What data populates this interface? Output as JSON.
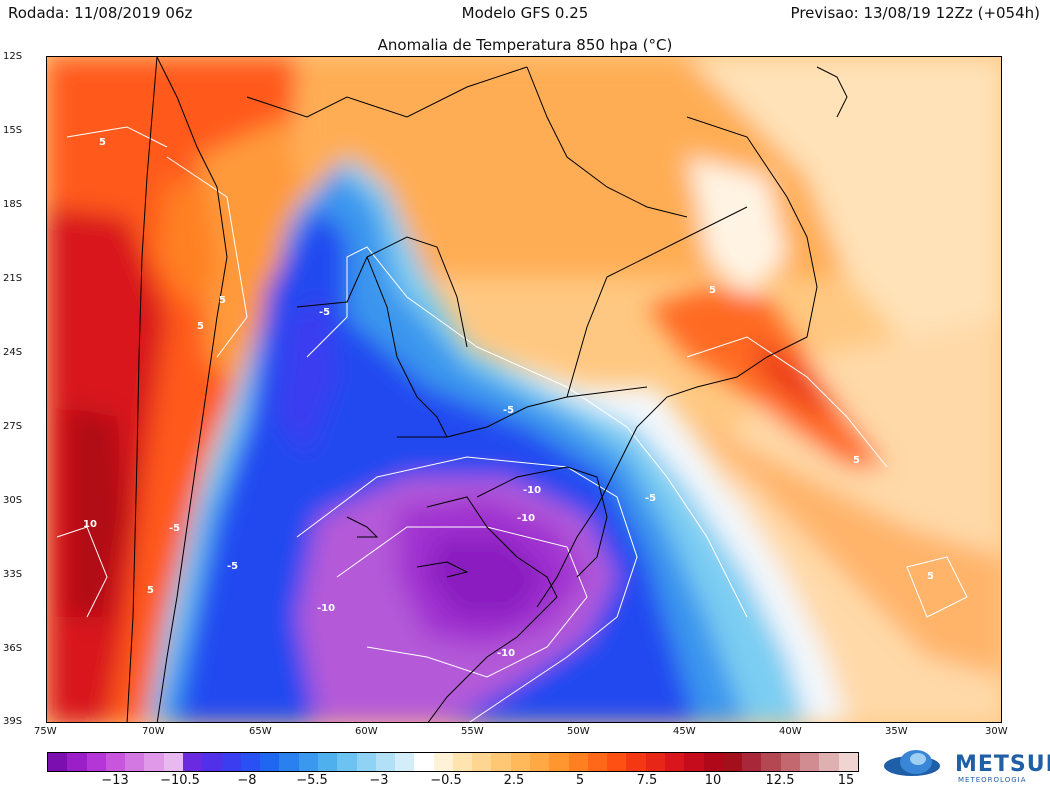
{
  "header": {
    "run": "Rodada: 11/08/2019 06z",
    "model": "Modelo GFS 0.25",
    "forecast": "Previsao: 13/08/19 12Zz (+054h)",
    "title": "Anomalia de Temperatura 850 hpa (°C)"
  },
  "axes": {
    "lat_labels": [
      "12S",
      "15S",
      "18S",
      "21S",
      "24S",
      "27S",
      "30S",
      "33S",
      "36S",
      "39S"
    ],
    "lon_labels": [
      "75W",
      "70W",
      "65W",
      "60W",
      "55W",
      "50W",
      "45W",
      "40W",
      "35W",
      "30W"
    ]
  },
  "contour_labels": [
    "5",
    "5",
    "5",
    "5",
    "5",
    "5",
    "5",
    "10",
    "-5",
    "-5",
    "-5",
    "-5",
    "-5",
    "-5",
    "-10",
    "-10",
    "-10",
    "-10"
  ],
  "colorbar": {
    "labels": [
      "−13",
      "−10.5",
      "−8",
      "−5.5",
      "−3",
      "−0.5",
      "2.5",
      "5",
      "7.5",
      "10",
      "12.5",
      "15"
    ],
    "colors": [
      "#7b0fb0",
      "#9a1fc8",
      "#b536d6",
      "#c756dd",
      "#d377e2",
      "#df99e8",
      "#e8b9ef",
      "#6a2be0",
      "#5030e8",
      "#3a3ef0",
      "#2850f2",
      "#1f66f0",
      "#2a80ee",
      "#3a98ee",
      "#4fb0ee",
      "#6cc3f1",
      "#8fd2f4",
      "#b2e0f7",
      "#d3eef9",
      "#ffffff",
      "#fff2d6",
      "#ffe4b0",
      "#ffd592",
      "#ffc774",
      "#ffb85a",
      "#ffa844",
      "#ff9630",
      "#ff8020",
      "#ff6818",
      "#ff5014",
      "#f53814",
      "#e82618",
      "#d8161c",
      "#c40c1c",
      "#b00818",
      "#a3101c",
      "#a8283a",
      "#b44852",
      "#c2686e",
      "#d08c90",
      "#dfb0b0",
      "#efd4d2"
    ]
  },
  "logo": {
    "name": "METSUL",
    "subtitle": "METEOROLOGIA"
  }
}
